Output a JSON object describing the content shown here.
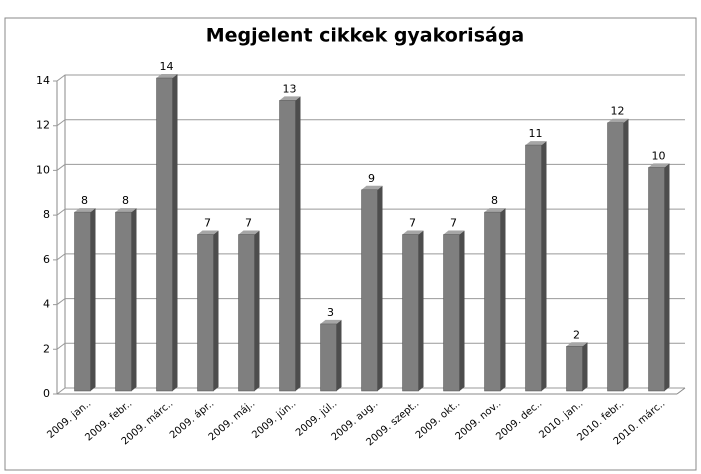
{
  "chart_data": {
    "type": "bar",
    "title": "Megjelent cikkek gyakorisága",
    "categories": [
      "2009. jan..",
      "2009. febr..",
      "2009. márc..",
      "2009. ápr..",
      "2009. máj..",
      "2009. jún..",
      "2009. júl..",
      "2009. aug..",
      "2009. szept..",
      "2009. okt..",
      "2009. nov..",
      "2009. dec..",
      "2010. jan..",
      "2010. febr..",
      "2010. márc.."
    ],
    "values": [
      8,
      8,
      14,
      7,
      7,
      13,
      3,
      9,
      7,
      7,
      8,
      11,
      2,
      12,
      10
    ],
    "color": "#7f7f7f",
    "ylim": [
      0,
      14
    ],
    "yticks": [
      0,
      2,
      4,
      6,
      8,
      10,
      12,
      14
    ],
    "grid": true
  }
}
